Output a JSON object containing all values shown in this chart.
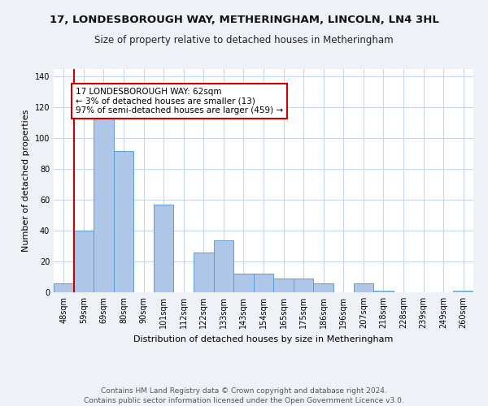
{
  "title": "17, LONDESBOROUGH WAY, METHERINGHAM, LINCOLN, LN4 3HL",
  "subtitle": "Size of property relative to detached houses in Metheringham",
  "xlabel": "Distribution of detached houses by size in Metheringham",
  "ylabel": "Number of detached properties",
  "categories": [
    "48sqm",
    "59sqm",
    "69sqm",
    "80sqm",
    "90sqm",
    "101sqm",
    "112sqm",
    "122sqm",
    "133sqm",
    "143sqm",
    "154sqm",
    "165sqm",
    "175sqm",
    "186sqm",
    "196sqm",
    "207sqm",
    "218sqm",
    "228sqm",
    "239sqm",
    "249sqm",
    "260sqm"
  ],
  "values": [
    6,
    40,
    114,
    92,
    0,
    57,
    0,
    26,
    34,
    12,
    12,
    9,
    9,
    6,
    0,
    6,
    1,
    0,
    0,
    0,
    1
  ],
  "bar_color": "#aec6e8",
  "bar_edge_color": "#5b9bd5",
  "highlight_index": 1,
  "highlight_color": "#cc0000",
  "annotation_text": "17 LONDESBOROUGH WAY: 62sqm\n← 3% of detached houses are smaller (13)\n97% of semi-detached houses are larger (459) →",
  "annotation_box_color": "#ffffff",
  "annotation_box_edge": "#cc0000",
  "ylim": [
    0,
    145
  ],
  "yticks": [
    0,
    20,
    40,
    60,
    80,
    100,
    120,
    140
  ],
  "footer": "Contains HM Land Registry data © Crown copyright and database right 2024.\nContains public sector information licensed under the Open Government Licence v3.0.",
  "background_color": "#eef2f7",
  "plot_bg_color": "#ffffff",
  "grid_color": "#c8d8ea",
  "title_fontsize": 9.5,
  "subtitle_fontsize": 8.5,
  "axis_label_fontsize": 8,
  "tick_fontsize": 7,
  "footer_fontsize": 6.5,
  "annotation_fontsize": 7.5
}
